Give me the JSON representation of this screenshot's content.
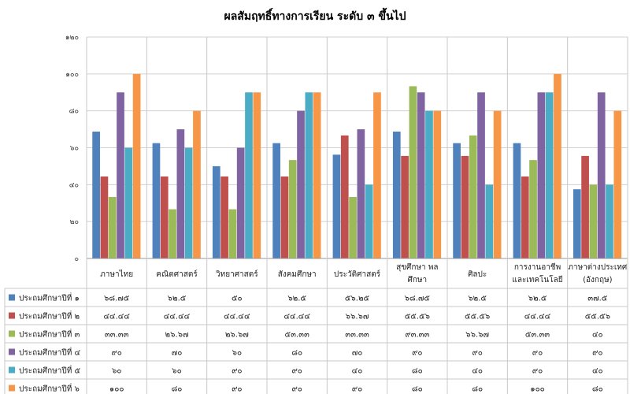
{
  "chart_data": {
    "type": "bar",
    "title": "ผลสัมฤทธิ์ทางการเรียน ระดับ ๓ ขึ้นไป",
    "xlabel": "",
    "ylabel": "",
    "ylim": [
      0,
      120
    ],
    "yticks": [
      0,
      20,
      40,
      60,
      80,
      100,
      120
    ],
    "ytick_labels": [
      "๐",
      "๒๐",
      "๔๐",
      "๖๐",
      "๘๐",
      "๑๐๐",
      "๑๒๐"
    ],
    "grid": true,
    "legend": "table-bottom",
    "categories": [
      [
        "ภาษาไทย"
      ],
      [
        "คณิตศาสตร์"
      ],
      [
        "วิทยาศาสตร์"
      ],
      [
        "สังคมศึกษา"
      ],
      [
        "ประวัติศาสตร์"
      ],
      [
        "สุขศึกษา พล",
        "ศึกษา"
      ],
      [
        "ศิลปะ"
      ],
      [
        "การงานอาชีพ",
        "และเทคโนโลยี"
      ],
      [
        "ภาษาต่างประเทศ",
        "(อังกฤษ)"
      ]
    ],
    "series": [
      {
        "name": "ประถมศึกษาปีที่ ๑",
        "color": "#4f81bd",
        "values": [
          68.75,
          62.5,
          50,
          62.5,
          56.25,
          68.75,
          62.5,
          62.5,
          37.5
        ],
        "labels": [
          "๖๘.๗๕",
          "๖๒.๕",
          "๕๐",
          "๖๒.๕",
          "๕๖.๒๕",
          "๖๘.๗๕",
          "๖๒.๕",
          "๖๒.๕",
          "๓๗.๕"
        ]
      },
      {
        "name": "ประถมศึกษาปีที่ ๒",
        "color": "#c0504d",
        "values": [
          44.44,
          44.44,
          44.44,
          44.44,
          66.67,
          55.56,
          55.56,
          44.44,
          55.56
        ],
        "labels": [
          "๔๔.๔๔",
          "๔๔.๔๔",
          "๔๔.๔๔",
          "๔๔.๔๔",
          "๖๖.๖๗",
          "๕๕.๕๖",
          "๕๕.๕๖",
          "๔๔.๔๔",
          "๕๕.๕๖"
        ]
      },
      {
        "name": "ประถมศึกษาปีที่ ๓",
        "color": "#9bbb59",
        "values": [
          33.33,
          26.67,
          26.67,
          53.33,
          33.33,
          93.33,
          66.67,
          53.33,
          40
        ],
        "labels": [
          "๓๓.๓๓",
          "๒๖.๖๗",
          "๒๖.๖๗",
          "๕๓.๓๓",
          "๓๓.๓๓",
          "๙๓.๓๓",
          "๖๖.๖๗",
          "๕๓.๓๓",
          "๔๐"
        ]
      },
      {
        "name": "ประถมศึกษาปีที่ ๔",
        "color": "#8064a2",
        "values": [
          90,
          70,
          60,
          80,
          70,
          90,
          90,
          90,
          90
        ],
        "labels": [
          "๙๐",
          "๗๐",
          "๖๐",
          "๘๐",
          "๗๐",
          "๙๐",
          "๙๐",
          "๙๐",
          "๙๐"
        ]
      },
      {
        "name": "ประถมศึกษาปีที่ ๕",
        "color": "#4bacc6",
        "values": [
          60,
          60,
          90,
          90,
          40,
          80,
          40,
          90,
          40
        ],
        "labels": [
          "๖๐",
          "๖๐",
          "๙๐",
          "๙๐",
          "๔๐",
          "๘๐",
          "๔๐",
          "๙๐",
          "๔๐"
        ]
      },
      {
        "name": "ประถมศึกษาปีที่ ๖",
        "color": "#f79646",
        "values": [
          100,
          80,
          90,
          90,
          90,
          80,
          80,
          100,
          80
        ],
        "labels": [
          "๑๐๐",
          "๘๐",
          "๙๐",
          "๙๐",
          "๙๐",
          "๘๐",
          "๘๐",
          "๑๐๐",
          "๘๐"
        ]
      }
    ]
  }
}
